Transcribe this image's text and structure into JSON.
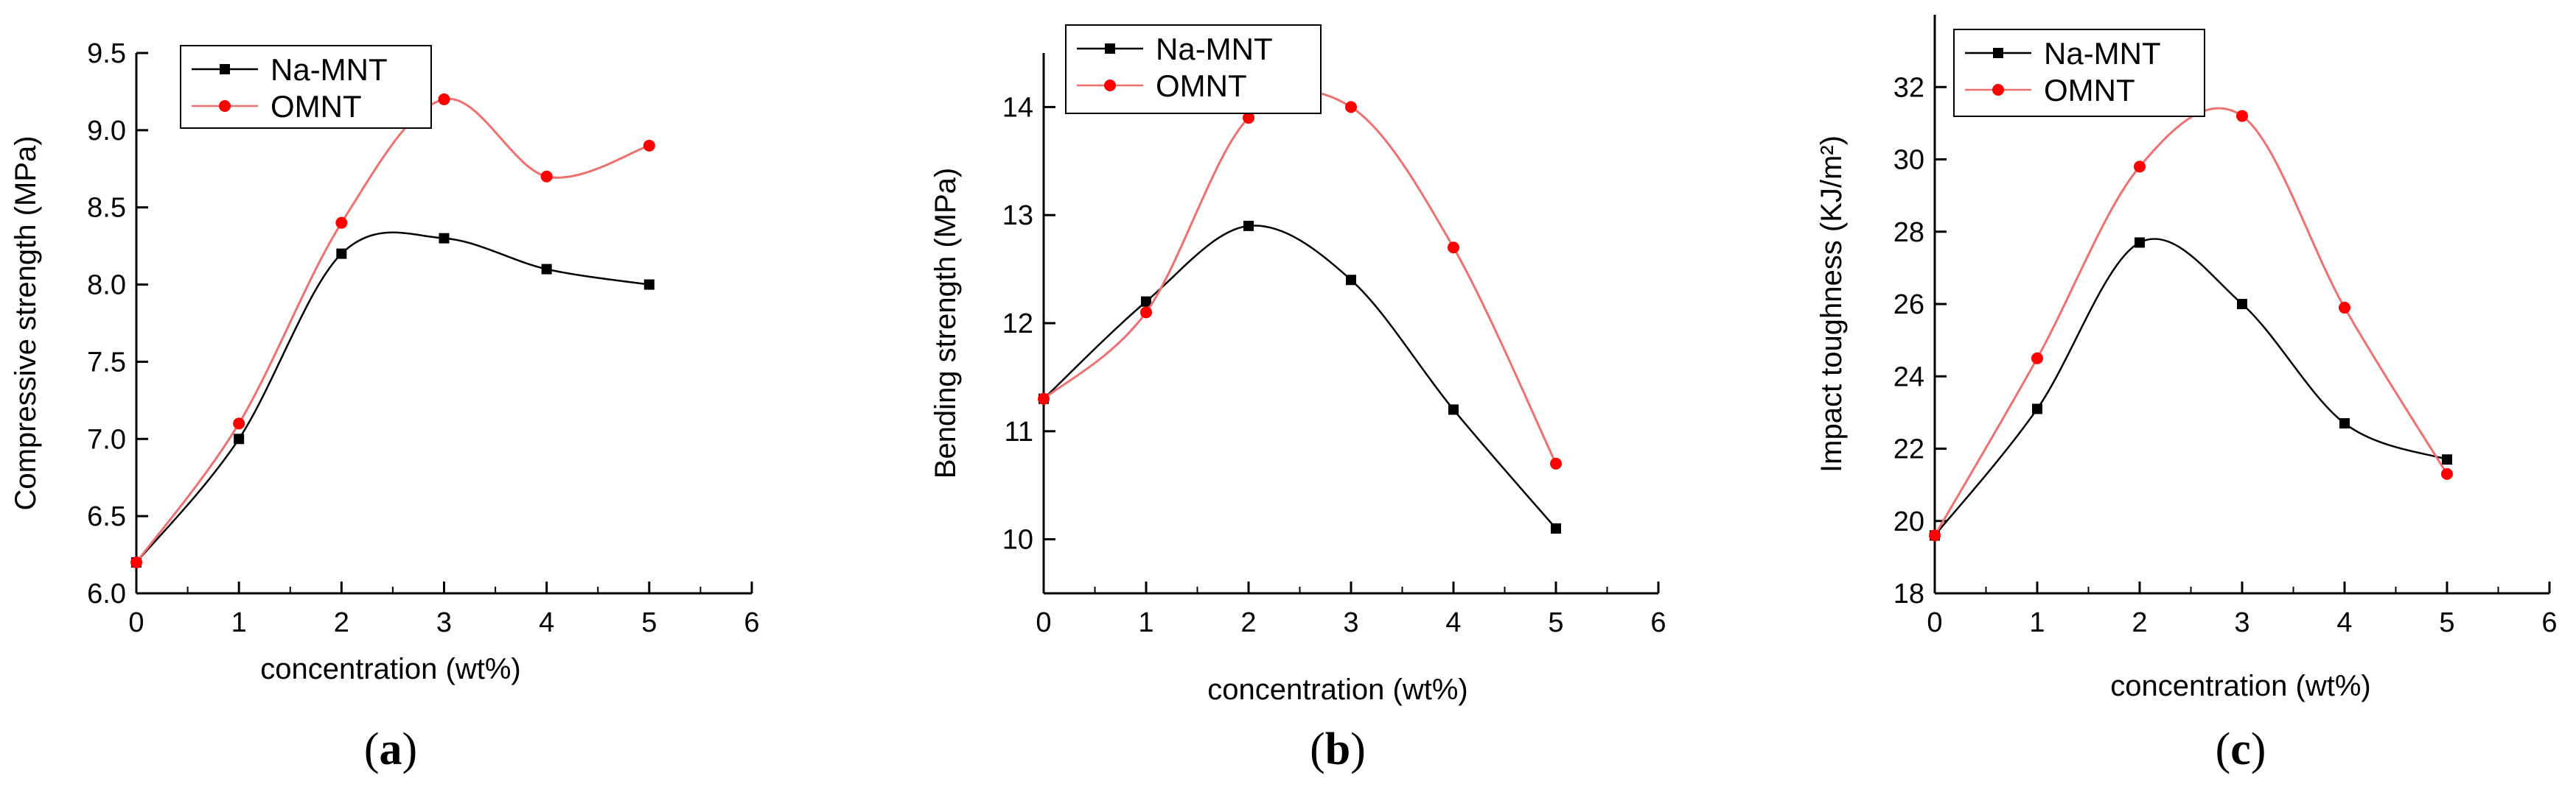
{
  "colors": {
    "na_mnt": "#000000",
    "omnt": "#ff0000",
    "omnt_line": "#f07070"
  },
  "icons": {
    "na_marker": "square-marker-icon",
    "omnt_marker": "circle-marker-icon"
  },
  "chart_data": [
    {
      "type": "scatter",
      "panel_label": "(a)",
      "panel_letter": "a",
      "title": "",
      "xlabel": "concentration (wt%)",
      "ylabel": "Compressive strength (MPa)",
      "xlim": [
        0,
        6
      ],
      "ylim": [
        6.0,
        9.5
      ],
      "x_ticks": [
        "0",
        "1",
        "2",
        "3",
        "4",
        "5",
        "6"
      ],
      "y_ticks": [
        "6.0",
        "6.5",
        "7.0",
        "7.5",
        "8.0",
        "8.5",
        "9.0",
        "9.5"
      ],
      "legend_position": "top-left",
      "series": [
        {
          "name": "Na-MNT",
          "marker": "square",
          "x": [
            0,
            1,
            2,
            3,
            4,
            5
          ],
          "values": [
            6.2,
            7.0,
            8.2,
            8.3,
            8.1,
            8.0
          ]
        },
        {
          "name": "OMNT",
          "marker": "circle",
          "x": [
            0,
            1,
            2,
            3,
            4,
            5
          ],
          "values": [
            6.2,
            7.1,
            8.4,
            9.2,
            8.7,
            8.9
          ]
        }
      ]
    },
    {
      "type": "scatter",
      "panel_label": "(b)",
      "panel_letter": "b",
      "title": "",
      "xlabel": "concentration (wt%)",
      "ylabel": "Bending strength (MPa)",
      "xlim": [
        0,
        6
      ],
      "ylim": [
        9.5,
        14.5
      ],
      "x_ticks": [
        "0",
        "1",
        "2",
        "3",
        "4",
        "5",
        "6"
      ],
      "y_ticks": [
        "10",
        "11",
        "12",
        "13",
        "14"
      ],
      "legend_position": "top-left",
      "series": [
        {
          "name": "Na-MNT",
          "marker": "square",
          "x": [
            0,
            1,
            2,
            3,
            4,
            5
          ],
          "values": [
            11.3,
            12.2,
            12.9,
            12.4,
            11.2,
            10.1
          ]
        },
        {
          "name": "OMNT",
          "marker": "circle",
          "x": [
            0,
            1,
            2,
            3,
            4,
            5
          ],
          "values": [
            11.3,
            12.1,
            13.9,
            14.0,
            12.7,
            10.7
          ]
        }
      ]
    },
    {
      "type": "scatter",
      "panel_label": "(c)",
      "panel_letter": "c",
      "title": "",
      "xlabel": "concentration (wt%)",
      "ylabel": "Impact toughness (KJ/m²)",
      "xlim": [
        0,
        6
      ],
      "ylim": [
        18,
        34
      ],
      "x_ticks": [
        "0",
        "1",
        "2",
        "3",
        "4",
        "5",
        "6"
      ],
      "y_ticks": [
        "18",
        "20",
        "22",
        "24",
        "26",
        "28",
        "30",
        "32"
      ],
      "legend_position": "top-left",
      "series": [
        {
          "name": "Na-MNT",
          "marker": "square",
          "x": [
            0,
            1,
            2,
            3,
            4,
            5
          ],
          "values": [
            19.6,
            23.1,
            27.7,
            26.0,
            22.7,
            21.7
          ]
        },
        {
          "name": "OMNT",
          "marker": "circle",
          "x": [
            0,
            1,
            2,
            3,
            4,
            5
          ],
          "values": [
            19.6,
            24.5,
            29.8,
            31.2,
            25.9,
            21.3
          ]
        }
      ]
    }
  ]
}
